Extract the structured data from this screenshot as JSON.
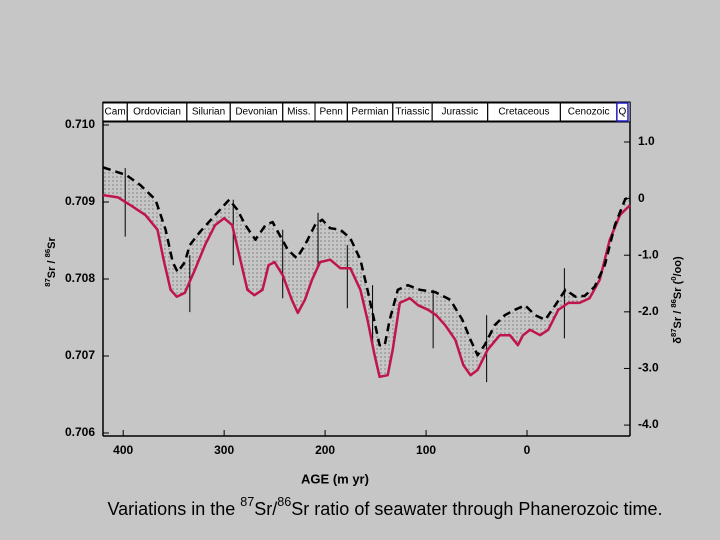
{
  "chart_data": {
    "type": "line",
    "caption": [
      "Variations in the ",
      "87",
      "Sr/",
      "86",
      "Sr ratio of seawater through Phanerozoic time."
    ],
    "xlabel": "AGE (m yr)",
    "ylabel": [
      "87",
      "Sr / ",
      "86",
      "Sr"
    ],
    "y2label": [
      "δ",
      "87",
      "Sr / ",
      "86",
      "Sr (",
      "0",
      "/oo)"
    ],
    "periods": [
      "Cam",
      "Ordovician",
      "Silurian",
      "Devonian",
      "Miss.",
      "Penn",
      "Permian",
      "Triassic",
      "Jurassic",
      "Cretaceous",
      "Cenozoic",
      "Q"
    ],
    "period_boundaries": [
      420,
      396,
      337,
      294,
      242,
      210,
      178,
      133,
      94,
      39,
      -33,
      -89,
      -100
    ],
    "xlim": [
      420,
      -102
    ],
    "xticks": [
      400,
      300,
      200,
      100,
      0
    ],
    "ylim": [
      0.706,
      0.71
    ],
    "yticks": [
      0.706,
      0.707,
      0.708,
      0.709,
      {
        "value": 0.71,
        "label": "0.710"
      }
    ],
    "y2lim": [
      -4.14,
      1.3
    ],
    "y2ticks": [
      {
        "value": 1,
        "label": "1.0"
      },
      0,
      {
        "value": -1,
        "label": "-1.0"
      },
      {
        "value": -2,
        "label": "-2.0"
      },
      {
        "value": -3,
        "label": "-3.0"
      },
      {
        "value": -4,
        "label": "-4.0"
      }
    ],
    "series": [
      {
        "color": "#c0154a",
        "style": "solid",
        "x": [
          420,
          405,
          393,
          378,
          366,
          360,
          353,
          347,
          339,
          329,
          319,
          309,
          300,
          292,
          284,
          277,
          270,
          262,
          256,
          250,
          242,
          233,
          227,
          220,
          213,
          205,
          195,
          185,
          175,
          165,
          158,
          151,
          146,
          138,
          133,
          126,
          116,
          108,
          98,
          90,
          81,
          71,
          63,
          56,
          49,
          39,
          27,
          17,
          9,
          4,
          -3,
          -13,
          -21,
          -31,
          -41,
          -52,
          -62,
          -72,
          -82,
          -92,
          -102
        ],
        "values": [
          0.70909,
          0.70906,
          0.70896,
          0.70883,
          0.70864,
          0.70825,
          0.70786,
          0.70777,
          0.70782,
          0.70812,
          0.70844,
          0.7087,
          0.70879,
          0.7087,
          0.70825,
          0.70786,
          0.70779,
          0.70786,
          0.70818,
          0.70822,
          0.70805,
          0.70773,
          0.70756,
          0.70773,
          0.70799,
          0.70822,
          0.70825,
          0.70814,
          0.70814,
          0.70786,
          0.70747,
          0.70701,
          0.70673,
          0.70675,
          0.70708,
          0.70769,
          0.70775,
          0.70766,
          0.7076,
          0.70753,
          0.7074,
          0.70721,
          0.70688,
          0.70675,
          0.70682,
          0.70708,
          0.70727,
          0.70727,
          0.70714,
          0.70727,
          0.70734,
          0.70727,
          0.70734,
          0.7076,
          0.70769,
          0.70769,
          0.70775,
          0.70799,
          0.70851,
          0.70883,
          0.70896
        ]
      },
      {
        "color": "#000000",
        "style": "dashed",
        "x": [
          420,
          397,
          383,
          368,
          358,
          351,
          346,
          339,
          334,
          324,
          309,
          295,
          287,
          279,
          269,
          259,
          252,
          245,
          237,
          228,
          220,
          210,
          203,
          195,
          185,
          175,
          165,
          158,
          151,
          146,
          141,
          136,
          128,
          118,
          106,
          91,
          76,
          64,
          56,
          49,
          42,
          32,
          22,
          12,
          2,
          -8,
          -18,
          -28,
          -38,
          -48,
          -57,
          -67,
          -77,
          -87,
          -97,
          -102
        ],
        "values": [
          0.70945,
          0.70935,
          0.70922,
          0.70903,
          0.70864,
          0.70822,
          0.70809,
          0.70822,
          0.70844,
          0.70861,
          0.70883,
          0.70903,
          0.7089,
          0.7087,
          0.70851,
          0.7087,
          0.70874,
          0.70857,
          0.70838,
          0.70827,
          0.70844,
          0.7087,
          0.70877,
          0.70866,
          0.70864,
          0.70853,
          0.70825,
          0.70786,
          0.70744,
          0.70714,
          0.70714,
          0.70747,
          0.70786,
          0.70792,
          0.70786,
          0.70783,
          0.70773,
          0.70747,
          0.70721,
          0.70701,
          0.70714,
          0.7074,
          0.70753,
          0.7076,
          0.70766,
          0.70753,
          0.70747,
          0.70766,
          0.70786,
          0.70777,
          0.70778,
          0.7079,
          0.70818,
          0.7087,
          0.70903,
          0.70909
        ]
      }
    ],
    "ranges": {
      "x": [
        398,
        334,
        291,
        242,
        207,
        178,
        153,
        93,
        40,
        -37
      ],
      "low": [
        0.70855,
        0.70757,
        0.70818,
        0.70775,
        0.70814,
        0.70762,
        0.70717,
        0.7071,
        0.70666,
        0.70723
      ],
      "high": [
        0.70944,
        0.70831,
        0.70903,
        0.70864,
        0.70886,
        0.70844,
        0.70792,
        0.70786,
        0.70753,
        0.70814
      ]
    }
  }
}
